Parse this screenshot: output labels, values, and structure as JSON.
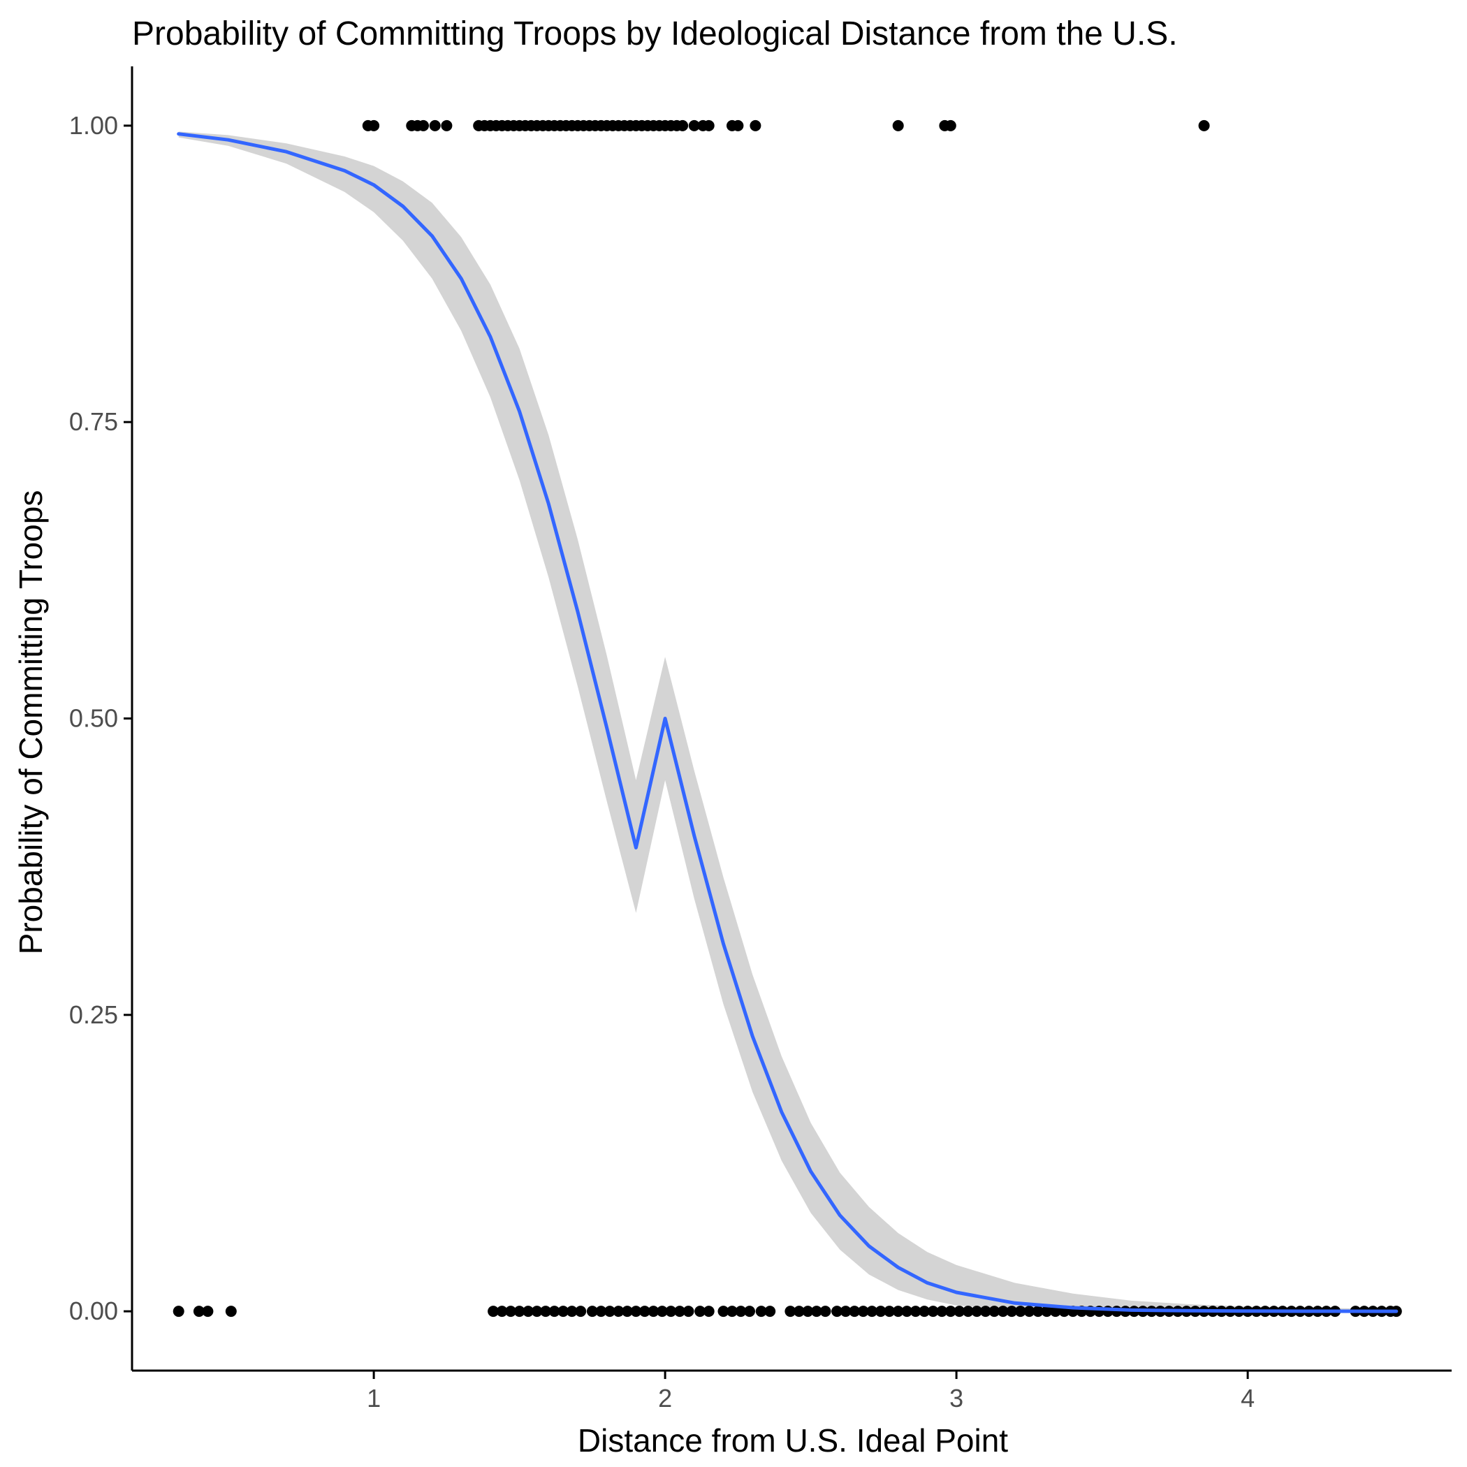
{
  "chart_data": {
    "type": "scatter",
    "title": "Probability of Committing Troops by Ideological Distance from the U.S.",
    "xlabel": "Distance from U.S. Ideal Point",
    "ylabel": "Probability of Committing Troops",
    "xlim": [
      0.17,
      4.7
    ],
    "ylim": [
      -0.05,
      1.05
    ],
    "x_ticks": [
      1,
      2,
      3,
      4
    ],
    "x_tick_labels": [
      "1",
      "2",
      "3",
      "4"
    ],
    "y_ticks": [
      0,
      0.25,
      0.5,
      0.75,
      1
    ],
    "y_tick_labels": [
      "0.00",
      "0.25",
      "0.50",
      "0.75",
      "1.00"
    ],
    "grid": false,
    "colors": {
      "points": "#000000",
      "fit_line": "#3366ff",
      "ribbon": "#d4d4d4",
      "axis": "#000000",
      "tick_label": "#4d4d4d"
    },
    "series": [
      {
        "kind": "points",
        "y": 1,
        "x": [
          0.98,
          1.0,
          1.13,
          1.15,
          1.17,
          1.21,
          1.25,
          1.36,
          1.38,
          1.4,
          1.42,
          1.44,
          1.46,
          1.48,
          1.5,
          1.52,
          1.54,
          1.56,
          1.58,
          1.6,
          1.62,
          1.64,
          1.66,
          1.68,
          1.7,
          1.72,
          1.74,
          1.76,
          1.78,
          1.8,
          1.82,
          1.84,
          1.86,
          1.88,
          1.9,
          1.92,
          1.94,
          1.96,
          1.98,
          2.0,
          2.02,
          2.04,
          2.06,
          2.1,
          2.13,
          2.15,
          2.23,
          2.25,
          2.31,
          2.8,
          2.96,
          2.98,
          3.85
        ]
      },
      {
        "kind": "points",
        "y": 0,
        "x": [
          0.33,
          0.4,
          0.43,
          0.51,
          1.41,
          1.44,
          1.47,
          1.5,
          1.53,
          1.56,
          1.59,
          1.62,
          1.65,
          1.68,
          1.71,
          1.75,
          1.78,
          1.81,
          1.84,
          1.87,
          1.9,
          1.93,
          1.96,
          1.99,
          2.02,
          2.05,
          2.08,
          2.12,
          2.15,
          2.2,
          2.23,
          2.26,
          2.29,
          2.33,
          2.36,
          2.43,
          2.46,
          2.49,
          2.52,
          2.55,
          2.59,
          2.62,
          2.65,
          2.68,
          2.71,
          2.74,
          2.77,
          2.8,
          2.83,
          2.86,
          2.89,
          2.92,
          2.95,
          2.98,
          3.01,
          3.04,
          3.07,
          3.1,
          3.13,
          3.16,
          3.19,
          3.22,
          3.25,
          3.28,
          3.31,
          3.34,
          3.37,
          3.4,
          3.43,
          3.46,
          3.49,
          3.52,
          3.55,
          3.58,
          3.61,
          3.64,
          3.67,
          3.7,
          3.73,
          3.76,
          3.79,
          3.82,
          3.85,
          3.88,
          3.91,
          3.94,
          3.97,
          4.0,
          4.03,
          4.06,
          4.09,
          4.12,
          4.15,
          4.18,
          4.21,
          4.24,
          4.27,
          4.3,
          4.37,
          4.4,
          4.43,
          4.46,
          4.49,
          4.51
        ]
      },
      {
        "kind": "fit",
        "x": [
          0.33,
          0.5,
          0.7,
          0.9,
          1.0,
          1.1,
          1.2,
          1.3,
          1.4,
          1.5,
          1.6,
          1.7,
          1.8,
          1.9,
          2.0,
          2.1,
          2.2,
          2.3,
          2.4,
          2.5,
          2.6,
          2.7,
          2.8,
          2.9,
          3.0,
          3.2,
          3.4,
          3.6,
          3.8,
          4.0,
          4.2,
          4.51
        ],
        "y": [
          0.993,
          0.988,
          0.978,
          0.962,
          0.95,
          0.932,
          0.907,
          0.871,
          0.822,
          0.759,
          0.681,
          0.59,
          0.492,
          0.391,
          0.5,
          0.401,
          0.31,
          0.232,
          0.168,
          0.118,
          0.081,
          0.055,
          0.037,
          0.024,
          0.016,
          0.007,
          0.003,
          0.001,
          0.0005,
          0.0002,
          0.0001,
          0.0
        ],
        "lower": [
          0.99,
          0.983,
          0.968,
          0.944,
          0.927,
          0.903,
          0.871,
          0.827,
          0.771,
          0.701,
          0.619,
          0.527,
          0.43,
          0.336,
          0.448,
          0.348,
          0.259,
          0.185,
          0.127,
          0.083,
          0.052,
          0.031,
          0.018,
          0.01,
          0.005,
          0.001,
          0.0003,
          0.0001,
          0.0,
          0.0,
          0.0,
          0.0
        ],
        "upper": [
          0.995,
          0.992,
          0.985,
          0.974,
          0.966,
          0.953,
          0.935,
          0.906,
          0.866,
          0.812,
          0.739,
          0.651,
          0.553,
          0.448,
          0.552,
          0.456,
          0.366,
          0.284,
          0.215,
          0.159,
          0.117,
          0.088,
          0.066,
          0.05,
          0.039,
          0.024,
          0.015,
          0.009,
          0.006,
          0.004,
          0.003,
          0.002
        ]
      }
    ]
  }
}
